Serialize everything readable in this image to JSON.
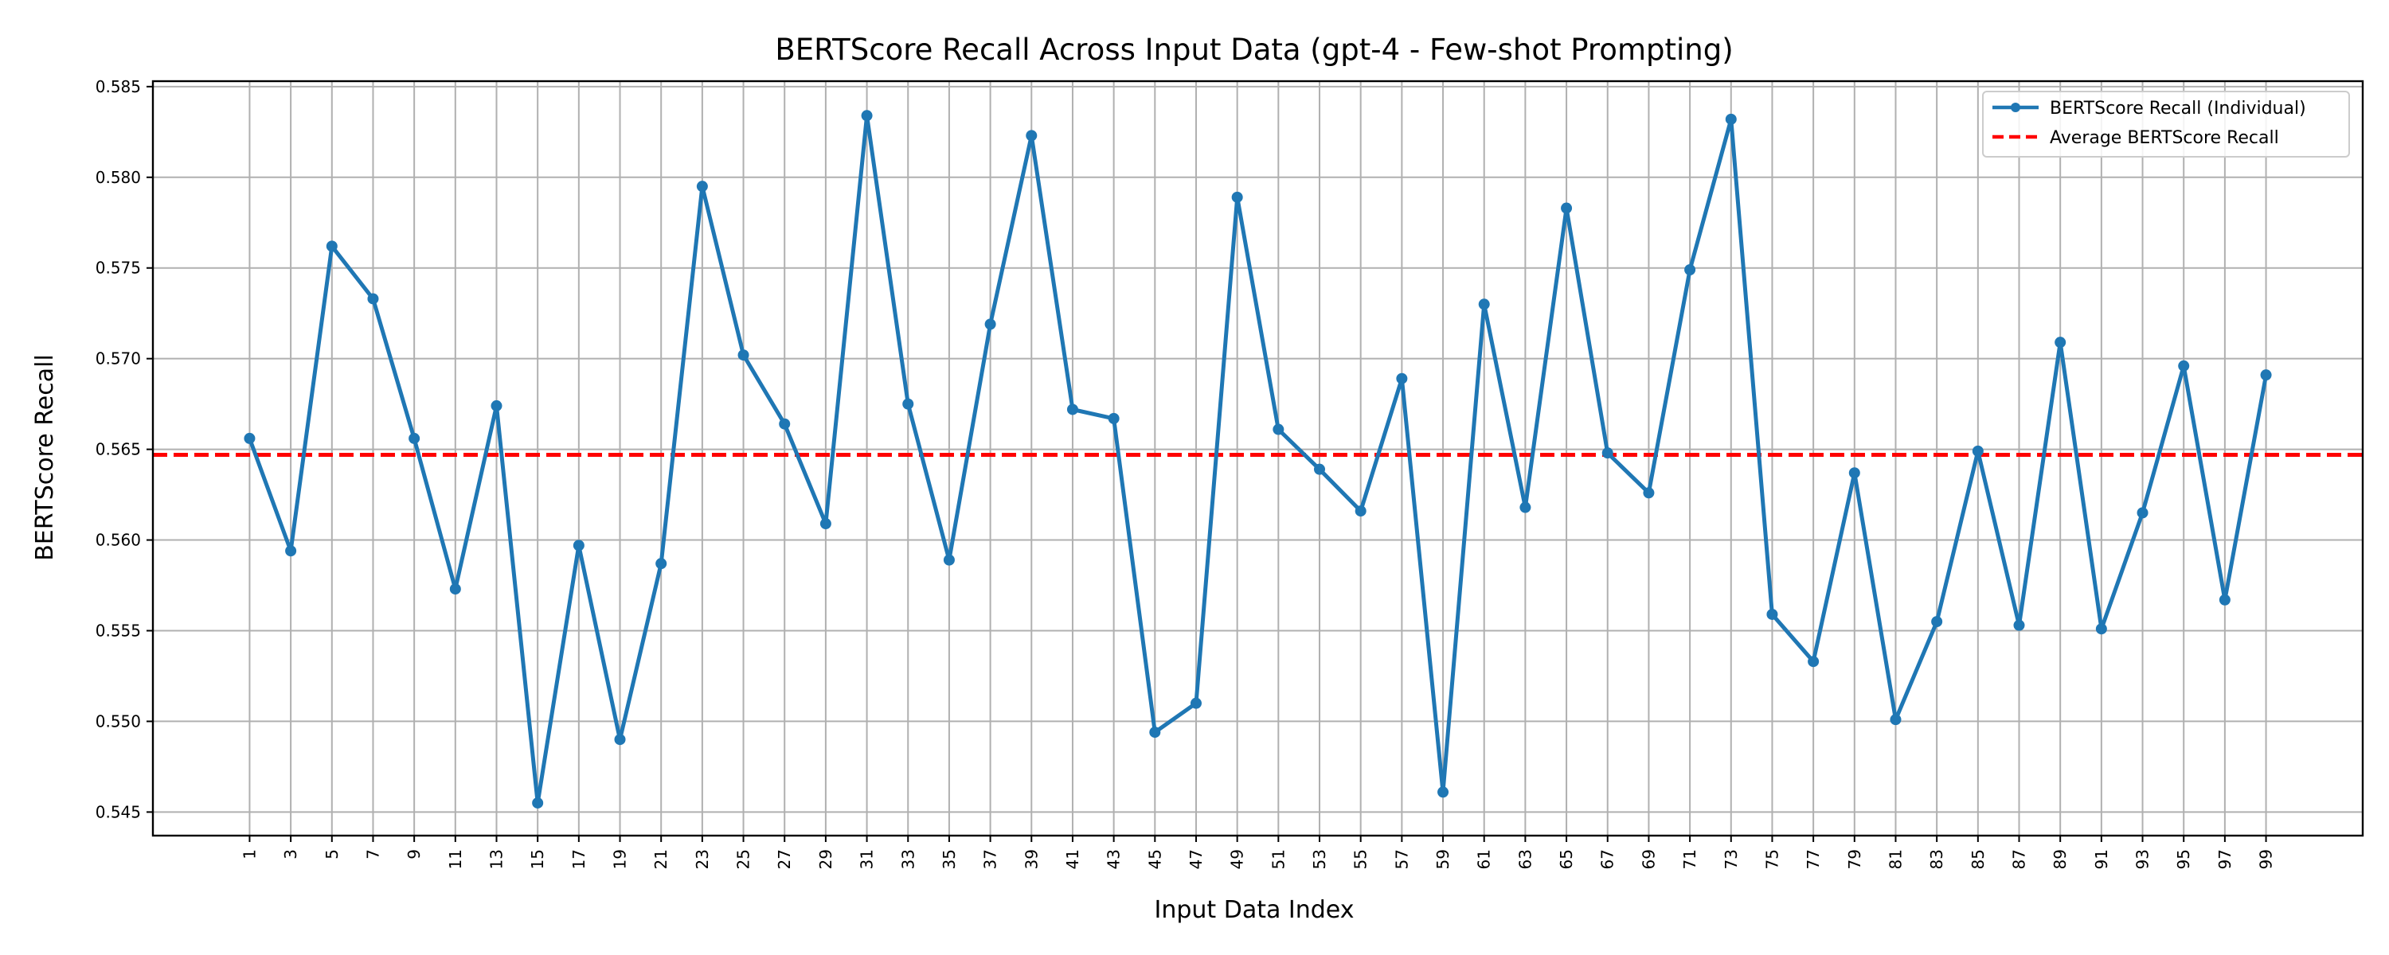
{
  "chart_data": {
    "type": "line",
    "title": "BERTScore Recall Across Input Data (gpt-4 - Few-shot Prompting)",
    "xlabel": "Input Data Index",
    "ylabel": "BERTScore Recall",
    "x": [
      1,
      3,
      5,
      7,
      9,
      11,
      13,
      15,
      17,
      19,
      21,
      23,
      25,
      27,
      29,
      31,
      33,
      35,
      37,
      39,
      41,
      43,
      45,
      47,
      49,
      51,
      53,
      55,
      57,
      59,
      61,
      63,
      65,
      67,
      69,
      71,
      73,
      75,
      77,
      79,
      81,
      83,
      85,
      87,
      89,
      91,
      93,
      95,
      97,
      99
    ],
    "xlim": [
      -3.7,
      103.7
    ],
    "ylim": [
      0.5437,
      0.5853
    ],
    "yticks": [
      "0.545",
      "0.550",
      "0.555",
      "0.560",
      "0.565",
      "0.570",
      "0.575",
      "0.580",
      "0.585"
    ],
    "grid": true,
    "legend_position": "top-right",
    "series": [
      {
        "name": "BERTScore Recall (Individual)",
        "color": "#1f77b4",
        "style": "solid-with-markers",
        "values": [
          0.5656,
          0.5594,
          0.5762,
          0.5733,
          0.5656,
          0.5573,
          0.5674,
          0.5455,
          0.5597,
          0.549,
          0.5587,
          0.5795,
          0.5702,
          0.5664,
          0.5609,
          0.5834,
          0.5675,
          0.5589,
          0.5719,
          0.5823,
          0.5672,
          0.5667,
          0.5494,
          0.551,
          0.5789,
          0.5661,
          0.5639,
          0.5616,
          0.5689,
          0.5461,
          0.573,
          0.5618,
          0.5783,
          0.5648,
          0.5626,
          0.5749,
          0.5832,
          0.5559,
          0.5533,
          0.5637,
          0.5501,
          0.5555,
          0.5649,
          0.5553,
          0.5709,
          0.5551,
          0.5615,
          0.5696,
          0.5567,
          0.5691
        ]
      },
      {
        "name": "Average BERTScore Recall",
        "color": "#ff0000",
        "style": "dashed",
        "value": 0.5647
      }
    ]
  }
}
